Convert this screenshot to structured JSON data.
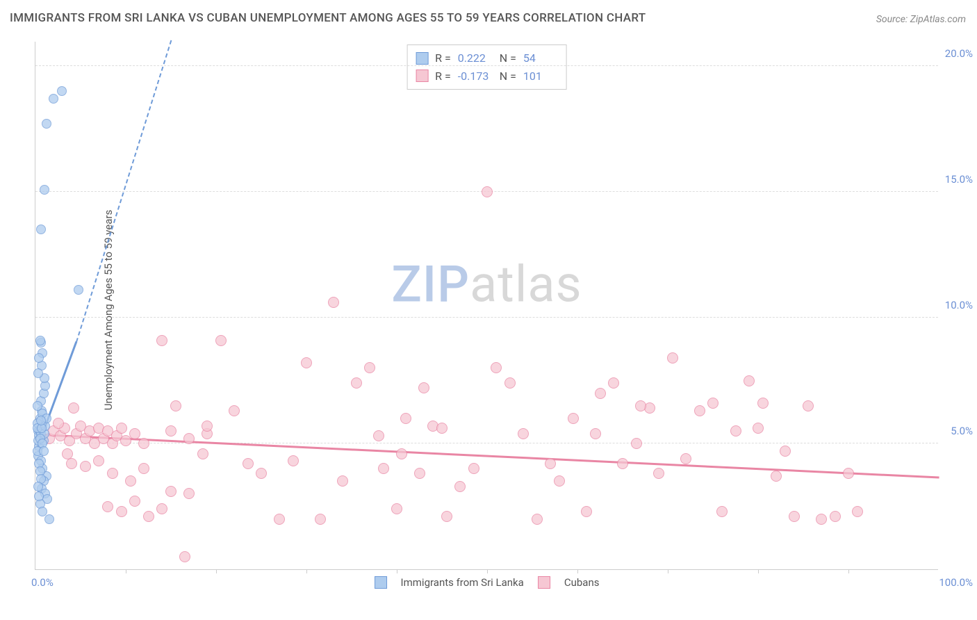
{
  "title": "IMMIGRANTS FROM SRI LANKA VS CUBAN UNEMPLOYMENT AMONG AGES 55 TO 59 YEARS CORRELATION CHART",
  "source": "Source: ZipAtlas.com",
  "ylabel": "Unemployment Among Ages 55 to 59 years",
  "watermark": {
    "part1": "ZIP",
    "part2": "atlas"
  },
  "chart": {
    "type": "scatter",
    "background": "#ffffff",
    "grid_color": "#dddddd",
    "axis_color": "#cccccc",
    "xlim": [
      0,
      100
    ],
    "ylim": [
      0,
      21
    ],
    "yticks": [
      {
        "v": 5,
        "label": "5.0%"
      },
      {
        "v": 10,
        "label": "10.0%"
      },
      {
        "v": 15,
        "label": "15.0%"
      },
      {
        "v": 20,
        "label": "20.0%"
      }
    ],
    "xticks": {
      "left": "0.0%",
      "right": "100.0%",
      "minor_step": 10
    },
    "series": [
      {
        "name": "Immigrants from Sri Lanka",
        "fill": "#aeccee",
        "stroke": "#6f9bd8",
        "marker_size": 14,
        "R": "0.222",
        "N": "54",
        "trend": {
          "x1": 0.2,
          "y1": 4.8,
          "x2": 4.5,
          "y2": 9.0,
          "dash_to_x": 15,
          "dash_to_y": 21
        },
        "points": [
          [
            0.3,
            5.5
          ],
          [
            0.4,
            5.3
          ],
          [
            0.5,
            5.5
          ],
          [
            0.6,
            5.4
          ],
          [
            0.5,
            6.0
          ],
          [
            0.7,
            6.3
          ],
          [
            0.8,
            6.2
          ],
          [
            0.6,
            6.7
          ],
          [
            0.9,
            7.0
          ],
          [
            1.1,
            7.3
          ],
          [
            1.0,
            7.6
          ],
          [
            0.7,
            8.1
          ],
          [
            0.8,
            8.6
          ],
          [
            0.6,
            9.0
          ],
          [
            0.5,
            9.1
          ],
          [
            0.4,
            4.9
          ],
          [
            0.3,
            4.5
          ],
          [
            0.6,
            4.3
          ],
          [
            0.8,
            4.0
          ],
          [
            1.2,
            3.7
          ],
          [
            0.9,
            3.5
          ],
          [
            0.7,
            3.2
          ],
          [
            1.1,
            3.0
          ],
          [
            1.3,
            2.8
          ],
          [
            0.5,
            2.6
          ],
          [
            0.8,
            2.3
          ],
          [
            1.5,
            2.0
          ],
          [
            0.4,
            8.4
          ],
          [
            0.3,
            7.8
          ],
          [
            0.2,
            6.5
          ],
          [
            0.2,
            5.8
          ],
          [
            0.3,
            5.1
          ],
          [
            0.4,
            4.2
          ],
          [
            0.5,
            3.9
          ],
          [
            0.6,
            3.6
          ],
          [
            0.3,
            3.3
          ],
          [
            0.4,
            2.9
          ],
          [
            0.2,
            4.7
          ],
          [
            0.2,
            5.6
          ],
          [
            0.9,
            5.1
          ],
          [
            1.0,
            5.4
          ],
          [
            1.1,
            5.7
          ],
          [
            1.2,
            6.0
          ],
          [
            0.5,
            5.2
          ],
          [
            0.7,
            5.6
          ],
          [
            0.6,
            5.9
          ],
          [
            0.8,
            5.0
          ],
          [
            0.9,
            4.7
          ],
          [
            4.8,
            11.1
          ],
          [
            1.0,
            15.1
          ],
          [
            1.2,
            17.7
          ],
          [
            0.6,
            13.5
          ],
          [
            2.0,
            18.7
          ],
          [
            2.9,
            19.0
          ]
        ]
      },
      {
        "name": "Cubans",
        "fill": "#f6c7d3",
        "stroke": "#e986a4",
        "marker_size": 16,
        "R": "-0.173",
        "N": "101",
        "trend": {
          "x1": 0.5,
          "y1": 5.3,
          "x2": 100,
          "y2": 3.6
        },
        "points": [
          [
            1.5,
            5.2
          ],
          [
            2.0,
            5.5
          ],
          [
            2.8,
            5.3
          ],
          [
            3.2,
            5.6
          ],
          [
            3.8,
            5.1
          ],
          [
            4.5,
            5.4
          ],
          [
            5.0,
            5.7
          ],
          [
            5.5,
            5.2
          ],
          [
            6.0,
            5.5
          ],
          [
            4.2,
            6.4
          ],
          [
            6.5,
            5.0
          ],
          [
            7.0,
            5.6
          ],
          [
            7.5,
            5.2
          ],
          [
            8.0,
            5.5
          ],
          [
            8.5,
            5.0
          ],
          [
            9.0,
            5.3
          ],
          [
            9.5,
            5.6
          ],
          [
            10.0,
            5.1
          ],
          [
            11.0,
            5.4
          ],
          [
            12.0,
            5.0
          ],
          [
            2.5,
            5.8
          ],
          [
            3.5,
            4.6
          ],
          [
            4.0,
            4.2
          ],
          [
            5.5,
            4.1
          ],
          [
            7.0,
            4.3
          ],
          [
            8.5,
            3.8
          ],
          [
            10.5,
            3.5
          ],
          [
            12.0,
            4.0
          ],
          [
            16.5,
            0.5
          ],
          [
            14.0,
            9.1
          ],
          [
            15.0,
            3.1
          ],
          [
            8.0,
            2.5
          ],
          [
            9.5,
            2.3
          ],
          [
            11.0,
            2.7
          ],
          [
            12.5,
            2.1
          ],
          [
            14.0,
            2.4
          ],
          [
            15.5,
            6.5
          ],
          [
            17.0,
            3.0
          ],
          [
            18.5,
            4.6
          ],
          [
            19.0,
            5.4
          ],
          [
            20.5,
            9.1
          ],
          [
            22.0,
            6.3
          ],
          [
            23.5,
            4.2
          ],
          [
            25.0,
            3.8
          ],
          [
            15.0,
            5.5
          ],
          [
            17.0,
            5.2
          ],
          [
            19.0,
            5.7
          ],
          [
            27.0,
            2.0
          ],
          [
            28.5,
            4.3
          ],
          [
            30.0,
            8.2
          ],
          [
            31.5,
            2.0
          ],
          [
            33.0,
            10.6
          ],
          [
            34.0,
            3.5
          ],
          [
            35.5,
            7.4
          ],
          [
            37.0,
            8.0
          ],
          [
            38.5,
            4.0
          ],
          [
            40.0,
            2.4
          ],
          [
            41.0,
            6.0
          ],
          [
            42.5,
            3.8
          ],
          [
            44.0,
            5.7
          ],
          [
            45.5,
            2.1
          ],
          [
            47.0,
            3.3
          ],
          [
            38.0,
            5.3
          ],
          [
            40.5,
            4.6
          ],
          [
            43.0,
            7.2
          ],
          [
            48.5,
            4.0
          ],
          [
            50.0,
            15.0
          ],
          [
            51.0,
            8.0
          ],
          [
            52.5,
            7.4
          ],
          [
            54.0,
            5.4
          ],
          [
            55.5,
            2.0
          ],
          [
            57.0,
            4.2
          ],
          [
            58.0,
            3.5
          ],
          [
            59.5,
            6.0
          ],
          [
            61.0,
            2.3
          ],
          [
            62.5,
            7.0
          ],
          [
            64.0,
            7.4
          ],
          [
            65.0,
            4.2
          ],
          [
            66.5,
            5.0
          ],
          [
            68.0,
            6.4
          ],
          [
            69.0,
            3.8
          ],
          [
            70.5,
            8.4
          ],
          [
            72.0,
            4.4
          ],
          [
            73.5,
            6.3
          ],
          [
            75.0,
            6.6
          ],
          [
            76.0,
            2.3
          ],
          [
            77.5,
            5.5
          ],
          [
            79.0,
            7.5
          ],
          [
            80.5,
            6.6
          ],
          [
            82.0,
            3.7
          ],
          [
            84.0,
            2.1
          ],
          [
            85.5,
            6.5
          ],
          [
            87.0,
            2.0
          ],
          [
            88.5,
            2.1
          ],
          [
            90.0,
            3.8
          ],
          [
            91.0,
            2.3
          ],
          [
            80.0,
            5.6
          ],
          [
            83.0,
            4.7
          ],
          [
            62.0,
            5.4
          ],
          [
            67.0,
            6.5
          ],
          [
            45.0,
            5.6
          ]
        ]
      }
    ]
  }
}
